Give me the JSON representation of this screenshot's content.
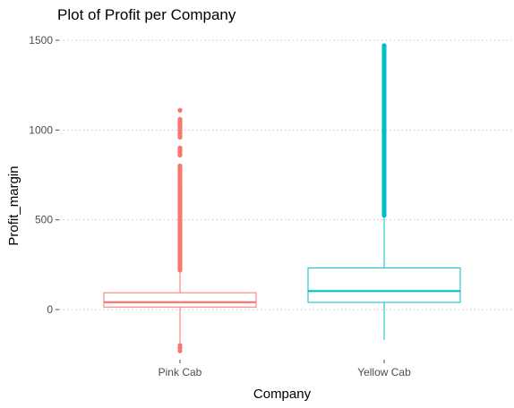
{
  "chart_data": {
    "type": "boxplot",
    "title": "Plot of Profit per Company",
    "xlabel": "Company",
    "ylabel": "Profit_margin",
    "ylim": [
      -240,
      1500
    ],
    "y_ticks": [
      0,
      500,
      1000,
      1500
    ],
    "grid": "horizontal-dotted",
    "legend": "none",
    "categories": [
      "Pink Cab",
      "Yellow Cab"
    ],
    "colors": {
      "Pink Cab": "#f8766d",
      "Yellow Cab": "#00bfc4"
    },
    "boxes": [
      {
        "name": "Pink Cab",
        "whisker_low": -220,
        "q1": 14,
        "median": 41,
        "q3": 94,
        "whisker_high": 212,
        "outliers": [
          -230,
          -215,
          -200,
          220,
          240,
          260,
          290,
          320,
          350,
          380,
          410,
          440,
          470,
          500,
          530,
          560,
          590,
          620,
          650,
          680,
          720,
          760,
          800,
          860,
          900,
          960,
          1000,
          1040,
          1060,
          1110
        ]
      },
      {
        "name": "Yellow Cab",
        "whisker_low": -170,
        "q1": 40,
        "median": 103,
        "q3": 232,
        "whisker_high": 520,
        "outliers": [
          525,
          560,
          600,
          640,
          680,
          720,
          760,
          800,
          840,
          880,
          920,
          960,
          1000,
          1040,
          1080,
          1120,
          1160,
          1200,
          1240,
          1280,
          1320,
          1360,
          1400,
          1430,
          1450,
          1470
        ]
      }
    ]
  }
}
